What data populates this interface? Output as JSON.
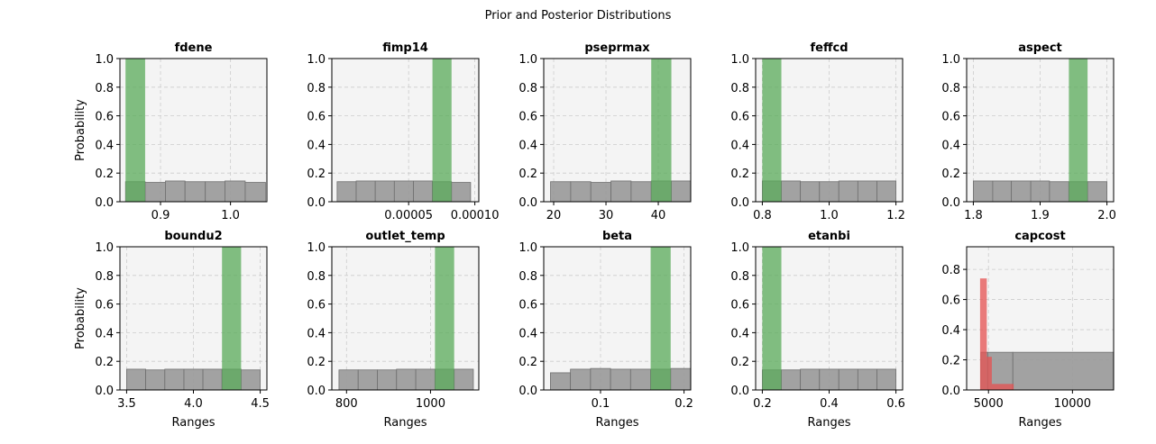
{
  "figure": {
    "suptitle": "Prior and Posterior Distributions"
  },
  "colors": {
    "prior": "#999999",
    "posterior": "#5aab5a",
    "red": "#e65050",
    "panel_bg": "#f4f4f4",
    "grid": "#cccccc"
  },
  "chart_data": [
    {
      "type": "bar",
      "title": "fdene",
      "xlabel": "",
      "ylabel": "Probability",
      "xlim": [
        0.842,
        1.052
      ],
      "ylim": [
        0,
        1.0
      ],
      "xticks": [
        {
          "v": 0.9,
          "label": "0.9"
        },
        {
          "v": 1.0,
          "label": "1.0"
        }
      ],
      "yticks": [
        {
          "v": 0,
          "label": "0.0"
        },
        {
          "v": 0.2,
          "label": "0.2"
        },
        {
          "v": 0.4,
          "label": "0.4"
        },
        {
          "v": 0.6,
          "label": "0.6"
        },
        {
          "v": 0.8,
          "label": "0.8"
        },
        {
          "v": 1.0,
          "label": "1.0"
        }
      ],
      "grid": true,
      "prior": {
        "edges": [
          0.85,
          0.878,
          0.907,
          0.935,
          0.964,
          0.992,
          1.021,
          1.05
        ],
        "values": [
          0.14,
          0.135,
          0.145,
          0.14,
          0.14,
          0.145,
          0.135
        ]
      },
      "posterior": {
        "edges": [
          0.85,
          0.878
        ],
        "values": [
          1.0
        ]
      }
    },
    {
      "type": "bar",
      "title": "fimp14",
      "xlabel": "",
      "ylabel": "",
      "xlim": [
        -8e-06,
        0.000103
      ],
      "ylim": [
        0,
        1.0
      ],
      "xticks": [
        {
          "v": 5e-05,
          "label": "0.00005"
        },
        {
          "v": 0.0001,
          "label": "0.00010"
        }
      ],
      "yticks": [
        {
          "v": 0,
          "label": "0.0"
        },
        {
          "v": 0.2,
          "label": "0.2"
        },
        {
          "v": 0.4,
          "label": "0.4"
        },
        {
          "v": 0.6,
          "label": "0.6"
        },
        {
          "v": 0.8,
          "label": "0.8"
        },
        {
          "v": 1.0,
          "label": "1.0"
        }
      ],
      "grid": true,
      "prior": {
        "edges": [
          -4e-06,
          1.04e-05,
          2.48e-05,
          3.92e-05,
          5.36e-05,
          6.8e-05,
          8.24e-05,
          9.68e-05
        ],
        "values": [
          0.14,
          0.145,
          0.145,
          0.145,
          0.145,
          0.14,
          0.135
        ]
      },
      "posterior": {
        "edges": [
          6.8e-05,
          8.24e-05
        ],
        "values": [
          1.0
        ]
      }
    },
    {
      "type": "bar",
      "title": "pseprmax",
      "xlabel": "",
      "ylabel": "",
      "xlim": [
        18.1,
        46.2
      ],
      "ylim": [
        0,
        1.0
      ],
      "xticks": [
        {
          "v": 20,
          "label": "20"
        },
        {
          "v": 30,
          "label": "30"
        },
        {
          "v": 40,
          "label": "40"
        }
      ],
      "yticks": [
        {
          "v": 0,
          "label": "0.0"
        },
        {
          "v": 0.2,
          "label": "0.2"
        },
        {
          "v": 0.4,
          "label": "0.4"
        },
        {
          "v": 0.6,
          "label": "0.6"
        },
        {
          "v": 0.8,
          "label": "0.8"
        },
        {
          "v": 1.0,
          "label": "1.0"
        }
      ],
      "grid": true,
      "prior": {
        "edges": [
          19.4,
          23.25,
          27.1,
          30.95,
          34.8,
          38.65,
          42.5,
          46.35
        ],
        "values": [
          0.14,
          0.14,
          0.135,
          0.145,
          0.14,
          0.145,
          0.145
        ]
      },
      "posterior": {
        "edges": [
          38.65,
          42.5
        ],
        "values": [
          1.0
        ]
      }
    },
    {
      "type": "bar",
      "title": "feffcd",
      "xlabel": "",
      "ylabel": "",
      "xlim": [
        0.78,
        1.22
      ],
      "ylim": [
        0,
        1.0
      ],
      "xticks": [
        {
          "v": 0.8,
          "label": "0.8"
        },
        {
          "v": 1.0,
          "label": "1.0"
        },
        {
          "v": 1.2,
          "label": "1.2"
        }
      ],
      "yticks": [
        {
          "v": 0,
          "label": "0.0"
        },
        {
          "v": 0.2,
          "label": "0.2"
        },
        {
          "v": 0.4,
          "label": "0.4"
        },
        {
          "v": 0.6,
          "label": "0.6"
        },
        {
          "v": 0.8,
          "label": "0.8"
        },
        {
          "v": 1.0,
          "label": "1.0"
        }
      ],
      "grid": true,
      "prior": {
        "edges": [
          0.8,
          0.857,
          0.914,
          0.971,
          1.029,
          1.086,
          1.143,
          1.2
        ],
        "values": [
          0.145,
          0.145,
          0.14,
          0.14,
          0.145,
          0.145,
          0.145
        ]
      },
      "posterior": {
        "edges": [
          0.8,
          0.857
        ],
        "values": [
          1.0
        ]
      }
    },
    {
      "type": "bar",
      "title": "aspect",
      "xlabel": "",
      "ylabel": "",
      "xlim": [
        1.79,
        2.01
      ],
      "ylim": [
        0,
        1.0
      ],
      "xticks": [
        {
          "v": 1.8,
          "label": "1.8"
        },
        {
          "v": 1.9,
          "label": "1.9"
        },
        {
          "v": 2.0,
          "label": "2.0"
        }
      ],
      "yticks": [
        {
          "v": 0,
          "label": "0.0"
        },
        {
          "v": 0.2,
          "label": "0.2"
        },
        {
          "v": 0.4,
          "label": "0.4"
        },
        {
          "v": 0.6,
          "label": "0.6"
        },
        {
          "v": 0.8,
          "label": "0.8"
        },
        {
          "v": 1.0,
          "label": "1.0"
        }
      ],
      "grid": true,
      "prior": {
        "edges": [
          1.8,
          1.829,
          1.857,
          1.886,
          1.914,
          1.943,
          1.971,
          2.0
        ],
        "values": [
          0.145,
          0.145,
          0.145,
          0.145,
          0.14,
          0.14,
          0.14
        ]
      },
      "posterior": {
        "edges": [
          1.943,
          1.971
        ],
        "values": [
          1.0
        ]
      }
    },
    {
      "type": "bar",
      "title": "boundu2",
      "xlabel": "Ranges",
      "ylabel": "Probability",
      "xlim": [
        3.45,
        4.55
      ],
      "ylim": [
        0,
        1.0
      ],
      "xticks": [
        {
          "v": 3.5,
          "label": "3.5"
        },
        {
          "v": 4.0,
          "label": "4.0"
        },
        {
          "v": 4.5,
          "label": "4.5"
        }
      ],
      "yticks": [
        {
          "v": 0,
          "label": "0.0"
        },
        {
          "v": 0.2,
          "label": "0.2"
        },
        {
          "v": 0.4,
          "label": "0.4"
        },
        {
          "v": 0.6,
          "label": "0.6"
        },
        {
          "v": 0.8,
          "label": "0.8"
        },
        {
          "v": 1.0,
          "label": "1.0"
        }
      ],
      "grid": true,
      "prior": {
        "edges": [
          3.5,
          3.643,
          3.786,
          3.929,
          4.071,
          4.214,
          4.357,
          4.5
        ],
        "values": [
          0.145,
          0.14,
          0.145,
          0.145,
          0.145,
          0.145,
          0.14
        ]
      },
      "posterior": {
        "edges": [
          4.214,
          4.357
        ],
        "values": [
          1.0
        ]
      }
    },
    {
      "type": "bar",
      "title": "outlet_temp",
      "xlabel": "Ranges",
      "ylabel": "",
      "xlim": [
        765,
        1115
      ],
      "ylim": [
        0,
        1.0
      ],
      "xticks": [
        {
          "v": 800,
          "label": "800"
        },
        {
          "v": 1000,
          "label": "1000"
        }
      ],
      "yticks": [
        {
          "v": 0,
          "label": "0.0"
        },
        {
          "v": 0.2,
          "label": "0.2"
        },
        {
          "v": 0.4,
          "label": "0.4"
        },
        {
          "v": 0.6,
          "label": "0.6"
        },
        {
          "v": 0.8,
          "label": "0.8"
        },
        {
          "v": 1.0,
          "label": "1.0"
        }
      ],
      "grid": true,
      "prior": {
        "edges": [
          782,
          827.7,
          873.4,
          919.1,
          964.9,
          1010.6,
          1056.3,
          1102
        ],
        "values": [
          0.14,
          0.14,
          0.14,
          0.145,
          0.145,
          0.145,
          0.145
        ]
      },
      "posterior": {
        "edges": [
          1010.6,
          1056.3
        ],
        "values": [
          1.0
        ]
      }
    },
    {
      "type": "bar",
      "title": "beta",
      "xlabel": "Ranges",
      "ylabel": "",
      "xlim": [
        0.032,
        0.208
      ],
      "ylim": [
        0,
        1.0
      ],
      "xticks": [
        {
          "v": 0.1,
          "label": "0.1"
        },
        {
          "v": 0.2,
          "label": "0.2"
        }
      ],
      "yticks": [
        {
          "v": 0,
          "label": "0.0"
        },
        {
          "v": 0.2,
          "label": "0.2"
        },
        {
          "v": 0.4,
          "label": "0.4"
        },
        {
          "v": 0.6,
          "label": "0.6"
        },
        {
          "v": 0.8,
          "label": "0.8"
        },
        {
          "v": 1.0,
          "label": "1.0"
        }
      ],
      "grid": true,
      "prior": {
        "edges": [
          0.04,
          0.064,
          0.088,
          0.112,
          0.136,
          0.16,
          0.184,
          0.208
        ],
        "values": [
          0.12,
          0.145,
          0.15,
          0.145,
          0.145,
          0.145,
          0.15
        ]
      },
      "posterior": {
        "edges": [
          0.16,
          0.184
        ],
        "values": [
          1.0
        ]
      }
    },
    {
      "type": "bar",
      "title": "etanbi",
      "xlabel": "Ranges",
      "ylabel": "",
      "xlim": [
        0.18,
        0.62
      ],
      "ylim": [
        0,
        1.0
      ],
      "xticks": [
        {
          "v": 0.2,
          "label": "0.2"
        },
        {
          "v": 0.4,
          "label": "0.4"
        },
        {
          "v": 0.6,
          "label": "0.6"
        }
      ],
      "yticks": [
        {
          "v": 0,
          "label": "0.0"
        },
        {
          "v": 0.2,
          "label": "0.2"
        },
        {
          "v": 0.4,
          "label": "0.4"
        },
        {
          "v": 0.6,
          "label": "0.6"
        },
        {
          "v": 0.8,
          "label": "0.8"
        },
        {
          "v": 1.0,
          "label": "1.0"
        }
      ],
      "grid": true,
      "prior": {
        "edges": [
          0.2,
          0.257,
          0.314,
          0.371,
          0.429,
          0.486,
          0.543,
          0.6
        ],
        "values": [
          0.14,
          0.14,
          0.145,
          0.145,
          0.145,
          0.145,
          0.145
        ]
      },
      "posterior": {
        "edges": [
          0.2,
          0.257
        ],
        "values": [
          1.0
        ]
      }
    },
    {
      "type": "bar",
      "title": "capcost",
      "xlabel": "Ranges",
      "ylabel": "",
      "xlim": [
        3700,
        12450
      ],
      "ylim": [
        0,
        0.95
      ],
      "xticks": [
        {
          "v": 5000,
          "label": "5000"
        },
        {
          "v": 10000,
          "label": "10000"
        }
      ],
      "yticks": [
        {
          "v": 0,
          "label": "0.0"
        },
        {
          "v": 0.2,
          "label": "0.2"
        },
        {
          "v": 0.4,
          "label": "0.4"
        },
        {
          "v": 0.6,
          "label": "0.6"
        },
        {
          "v": 0.8,
          "label": "0.8"
        }
      ],
      "grid": true,
      "prior": {
        "edges": [
          4550,
          4950,
          6450,
          13100
        ],
        "values": [
          0.25,
          0.25,
          0.25
        ]
      },
      "posterior_red": {
        "edges": [
          4500,
          4900,
          5200,
          6500
        ],
        "values": [
          0.74,
          0.22,
          0.04
        ]
      }
    }
  ]
}
